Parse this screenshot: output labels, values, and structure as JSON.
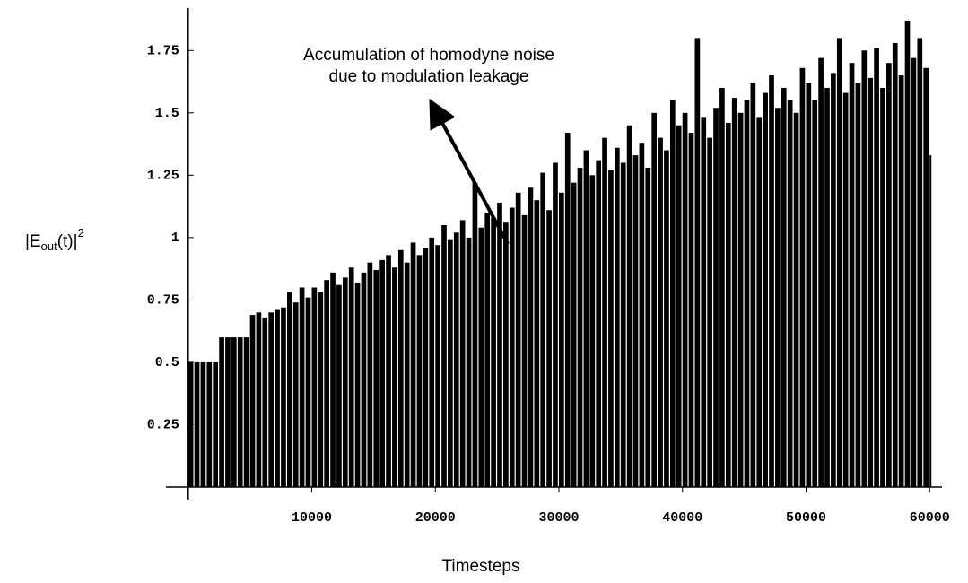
{
  "chart_data": {
    "type": "spikes",
    "xlabel": "Timesteps",
    "ylabel": {
      "main": "|E",
      "sub": "out",
      "mid": "(t)|",
      "sup": "2"
    },
    "annotation": [
      "Accumulation of homodyne noise",
      "due to modulation leakage"
    ],
    "color": "#000000",
    "xlim": [
      -1800,
      61000
    ],
    "xticks": [
      10000,
      20000,
      30000,
      40000,
      50000,
      60000
    ],
    "ylim": [
      0,
      1.92
    ],
    "yticks": [
      0.25,
      0.5,
      0.75,
      1,
      1.25,
      1.5,
      1.75
    ],
    "x": [
      0,
      500,
      1000,
      1500,
      2000,
      2500,
      3000,
      3500,
      4000,
      4500,
      5000,
      5500,
      6000,
      6500,
      7000,
      7500,
      8000,
      8500,
      9000,
      9500,
      10000,
      10500,
      11000,
      11500,
      12000,
      12500,
      13000,
      13500,
      14000,
      14500,
      15000,
      15500,
      16000,
      16500,
      17000,
      17500,
      18000,
      18500,
      19000,
      19500,
      20000,
      20500,
      21000,
      21500,
      22000,
      22500,
      23000,
      23500,
      24000,
      24500,
      25000,
      25500,
      26000,
      26500,
      27000,
      27500,
      28000,
      28500,
      29000,
      29500,
      30000,
      30500,
      31000,
      31500,
      32000,
      32500,
      33000,
      33500,
      34000,
      34500,
      35000,
      35500,
      36000,
      36500,
      37000,
      37500,
      38000,
      38500,
      39000,
      39500,
      40000,
      40500,
      41000,
      41500,
      42000,
      42500,
      43000,
      43500,
      44000,
      44500,
      45000,
      45500,
      46000,
      46500,
      47000,
      47500,
      48000,
      48500,
      49000,
      49500,
      50000,
      50500,
      51000,
      51500,
      52000,
      52500,
      53000,
      53500,
      54000,
      54500,
      55000,
      55500,
      56000,
      56500,
      57000,
      57500,
      58000,
      58500,
      59000,
      59500,
      60000
    ],
    "values": [
      0.5,
      0.5,
      0.5,
      0.5,
      0.5,
      0.6,
      0.6,
      0.6,
      0.6,
      0.6,
      0.69,
      0.7,
      0.68,
      0.7,
      0.71,
      0.72,
      0.78,
      0.74,
      0.8,
      0.76,
      0.8,
      0.78,
      0.83,
      0.86,
      0.81,
      0.84,
      0.88,
      0.82,
      0.86,
      0.9,
      0.87,
      0.91,
      0.93,
      0.88,
      0.95,
      0.9,
      0.98,
      0.93,
      0.96,
      1.0,
      0.97,
      1.05,
      0.99,
      1.02,
      1.07,
      1.0,
      1.22,
      1.04,
      1.1,
      1.08,
      1.14,
      1.06,
      1.12,
      1.18,
      1.09,
      1.2,
      1.15,
      1.26,
      1.11,
      1.3,
      1.18,
      1.42,
      1.22,
      1.28,
      1.35,
      1.25,
      1.31,
      1.4,
      1.27,
      1.36,
      1.3,
      1.45,
      1.33,
      1.38,
      1.28,
      1.5,
      1.4,
      1.35,
      1.55,
      1.45,
      1.5,
      1.42,
      1.8,
      1.48,
      1.4,
      1.52,
      1.6,
      1.46,
      1.56,
      1.5,
      1.55,
      1.62,
      1.48,
      1.58,
      1.65,
      1.52,
      1.6,
      1.55,
      1.5,
      1.68,
      1.62,
      1.55,
      1.72,
      1.6,
      1.66,
      1.8,
      1.58,
      1.7,
      1.62,
      1.75,
      1.64,
      1.76,
      1.6,
      1.7,
      1.78,
      1.65,
      1.87,
      1.72,
      1.8,
      1.68,
      1.33
    ]
  }
}
